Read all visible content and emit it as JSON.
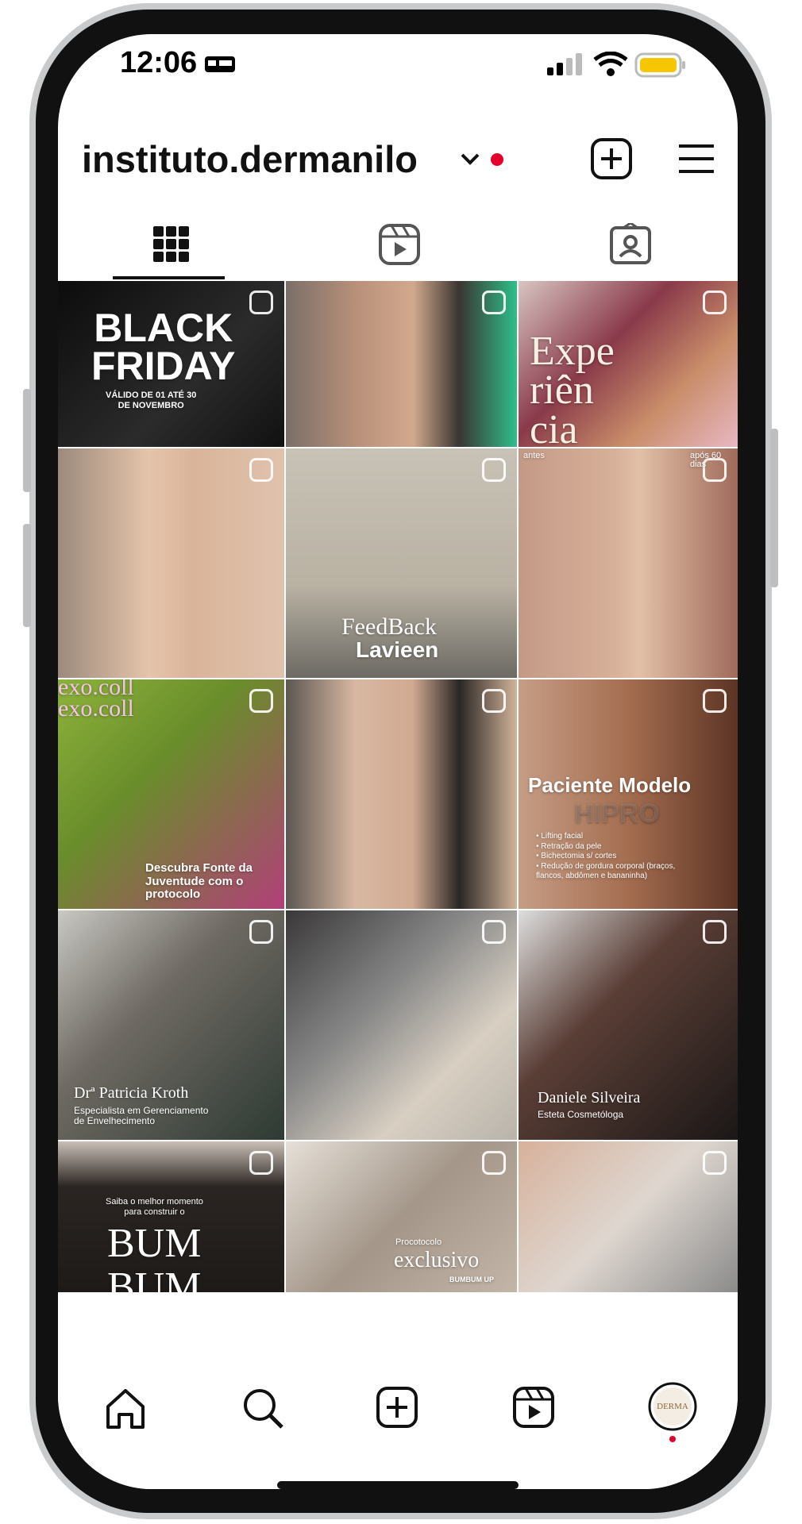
{
  "status_bar": {
    "time": "12:06"
  },
  "header": {
    "username": "instituto.dermanilo"
  },
  "tiles": [
    {
      "texts": [
        "BLACK\nFRIDAY",
        "VÁLIDO DE 01 ATÉ 30\nDE NOVEMBRO"
      ]
    },
    {
      "texts": []
    },
    {
      "texts": [
        "Expe\nriên\ncia"
      ]
    },
    {
      "texts": []
    },
    {
      "texts": [
        "FeedBack",
        "Lavieen"
      ]
    },
    {
      "texts": [
        "antes",
        "após 60 dias"
      ]
    },
    {
      "texts": [
        "exo.coll\nexo.coll",
        "Descubra Fonte da\nJuventude com o\nprotocolo"
      ]
    },
    {
      "texts": []
    },
    {
      "texts": [
        "Paciente Modelo",
        "HIPRO",
        "• Lifting facial\n• Retração da pele\n• Bichectomia s/ cortes\n• Redução de gordura corporal (braços,\n  flancos, abdômen e bananinha)"
      ]
    },
    {
      "texts": [
        "Drª Patricia Kroth",
        "Especialista em Gerenciamento\nde Envelhecimento"
      ]
    },
    {
      "texts": []
    },
    {
      "texts": [
        "Daniele Silveira",
        "Esteta Cosmetóloga"
      ]
    },
    {
      "texts": [
        "Saiba o melhor momento\npara construir o",
        "BUM\nBUM"
      ]
    },
    {
      "texts": [
        "Procotocolo",
        "exclusivo",
        "BUMBUM UP"
      ]
    },
    {
      "texts": []
    }
  ]
}
